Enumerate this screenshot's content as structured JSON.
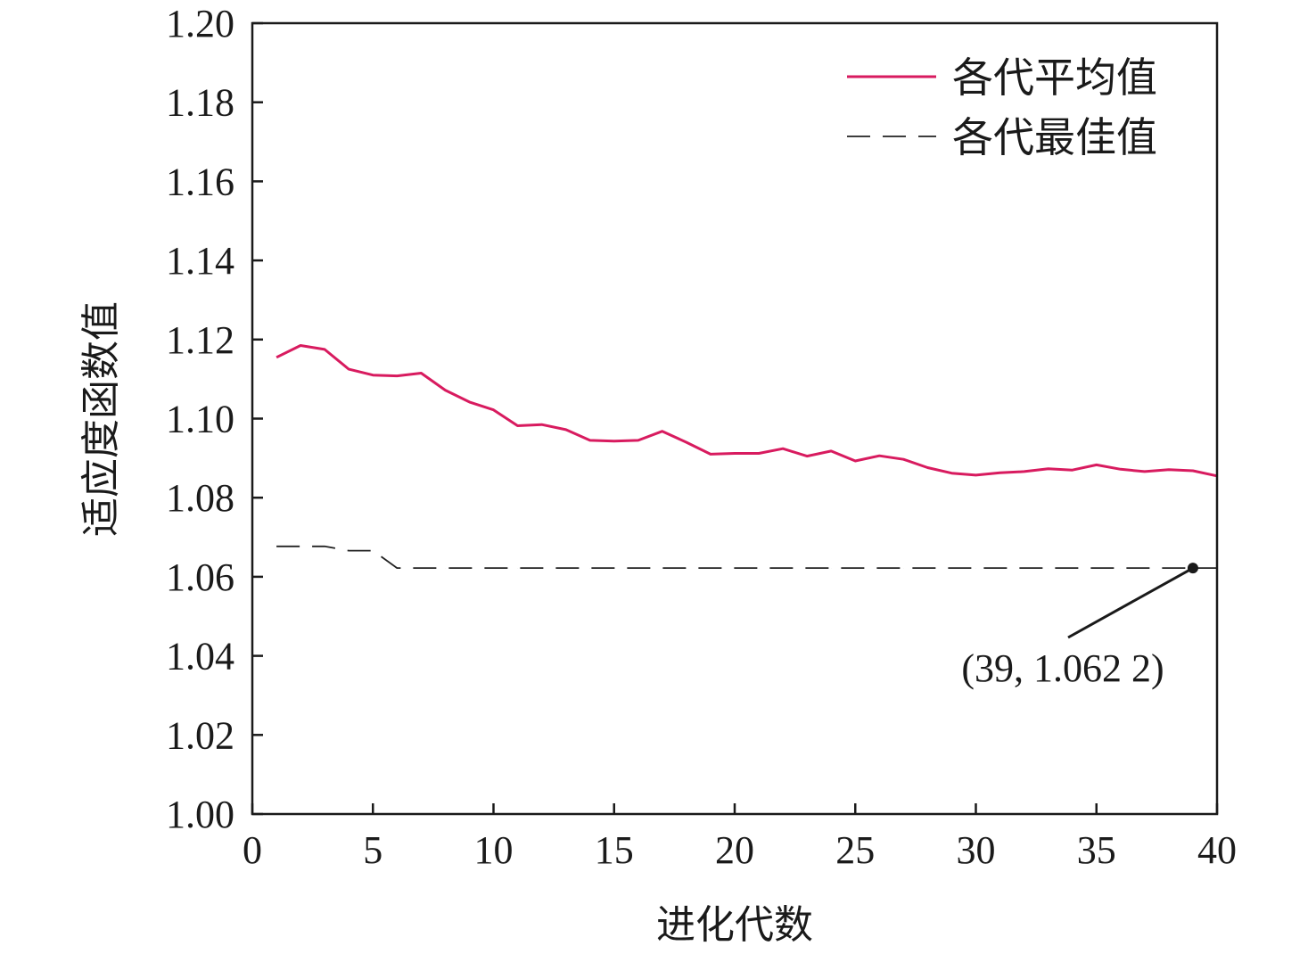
{
  "chart_data": {
    "type": "line",
    "xlabel": "进化代数",
    "ylabel": "适应度函数值",
    "xlim": [
      0,
      40
    ],
    "ylim": [
      1.0,
      1.2
    ],
    "xticks": [
      "0",
      "5",
      "10",
      "15",
      "20",
      "25",
      "30",
      "35",
      "40"
    ],
    "yticks": [
      "1.00",
      "1.02",
      "1.04",
      "1.06",
      "1.08",
      "1.10",
      "1.12",
      "1.14",
      "1.16",
      "1.18",
      "1.20"
    ],
    "grid": false,
    "legend_position": "top-right",
    "series": [
      {
        "name": "各代平均值",
        "color": "#d81b5f",
        "style": "solid",
        "x": [
          1,
          2,
          3,
          4,
          5,
          6,
          7,
          8,
          9,
          10,
          11,
          12,
          13,
          14,
          15,
          16,
          17,
          18,
          19,
          20,
          21,
          22,
          23,
          24,
          25,
          26,
          27,
          28,
          29,
          30,
          31,
          32,
          33,
          34,
          35,
          36,
          37,
          38,
          39,
          40
        ],
        "y": [
          1.1155,
          1.1185,
          1.1175,
          1.1125,
          1.111,
          1.1108,
          1.1115,
          1.1072,
          1.1042,
          1.1022,
          1.0982,
          1.0985,
          1.0972,
          1.0945,
          1.0943,
          1.0945,
          1.0968,
          1.094,
          1.091,
          1.0912,
          1.0912,
          1.0924,
          1.0905,
          1.0918,
          1.0893,
          1.0906,
          1.0897,
          1.0876,
          1.0862,
          1.0857,
          1.0863,
          1.0866,
          1.0873,
          1.087,
          1.0883,
          1.0872,
          1.0866,
          1.0871,
          1.0868,
          1.0855
        ]
      },
      {
        "name": "各代最佳值",
        "color": "#222222",
        "style": "dashed",
        "x": [
          1,
          2,
          3,
          4,
          5,
          6,
          7,
          8,
          9,
          10,
          11,
          12,
          13,
          14,
          15,
          16,
          17,
          18,
          19,
          20,
          21,
          22,
          23,
          24,
          25,
          26,
          27,
          28,
          29,
          30,
          31,
          32,
          33,
          34,
          35,
          36,
          37,
          38,
          39,
          40
        ],
        "y": [
          1.0677,
          1.0677,
          1.0677,
          1.0666,
          1.0666,
          1.0622,
          1.0622,
          1.0622,
          1.0622,
          1.0622,
          1.0622,
          1.0622,
          1.0622,
          1.0622,
          1.0622,
          1.0622,
          1.0622,
          1.0622,
          1.0622,
          1.0622,
          1.0622,
          1.0622,
          1.0622,
          1.0622,
          1.0622,
          1.0622,
          1.0622,
          1.0622,
          1.0622,
          1.0622,
          1.0622,
          1.0622,
          1.0622,
          1.0622,
          1.0622,
          1.0622,
          1.0622,
          1.0622,
          1.0622,
          1.0622
        ]
      }
    ],
    "annotations": [
      {
        "text": "(39, 1.062 2)",
        "x": 39,
        "y": 1.0622
      }
    ]
  }
}
